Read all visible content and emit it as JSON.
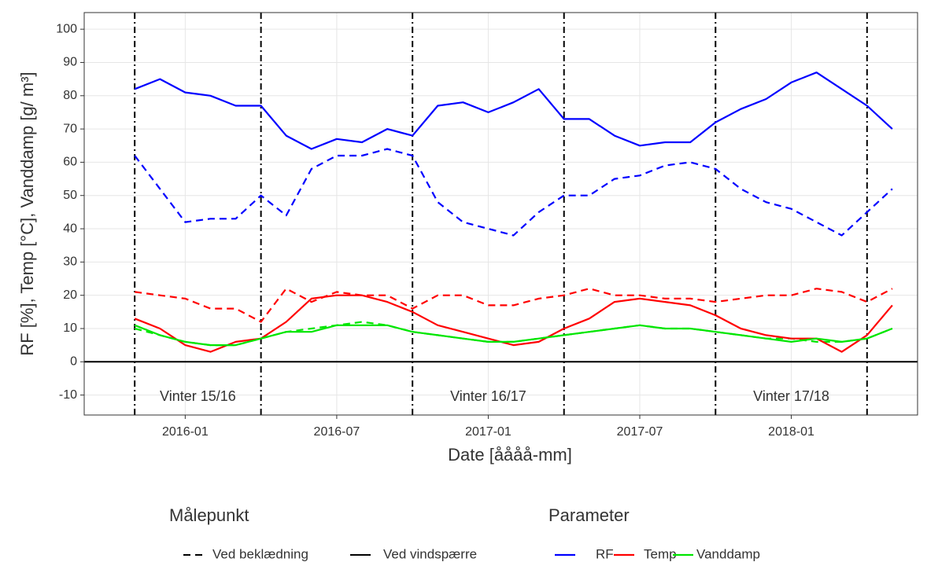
{
  "chart_data": {
    "type": "line",
    "xlabel": "Date [åååå-mm]",
    "ylabel": "RF [%], Temp [°C], Vanddamp [g/ m³]",
    "x": [
      "2015-11",
      "2015-12",
      "2016-01",
      "2016-02",
      "2016-03",
      "2016-04",
      "2016-05",
      "2016-06",
      "2016-07",
      "2016-08",
      "2016-09",
      "2016-10",
      "2016-11",
      "2016-12",
      "2017-01",
      "2017-02",
      "2017-03",
      "2017-04",
      "2017-05",
      "2017-06",
      "2017-07",
      "2017-08",
      "2017-09",
      "2017-10",
      "2017-11",
      "2017-12",
      "2018-01",
      "2018-02",
      "2018-03",
      "2018-04",
      "2018-05"
    ],
    "xlim": [
      "2015-09",
      "2018-06"
    ],
    "xticks": [
      "2016-01",
      "2016-07",
      "2017-01",
      "2017-07",
      "2018-01"
    ],
    "ylim": [
      -16,
      105
    ],
    "yticks": [
      -10,
      0,
      10,
      20,
      30,
      40,
      50,
      60,
      70,
      80,
      90,
      100
    ],
    "grid": true,
    "hline": 0,
    "vlines": [
      "2015-11",
      "2016-04",
      "2016-10",
      "2017-04",
      "2017-10",
      "2018-04"
    ],
    "annotations": [
      "Vinter 15/16",
      "Vinter 16/17",
      "Vinter 17/18"
    ],
    "legend_linetype_title": "Målepunkt",
    "legend_color_title": "Parameter",
    "parameters": [
      {
        "name": "RF",
        "color": "#0000ff"
      },
      {
        "name": "Temp",
        "color": "#ff0000"
      },
      {
        "name": "Vanddamp",
        "color": "#00e600"
      }
    ],
    "series": [
      {
        "name": "Ved beklædning",
        "linetype": "dashed",
        "values": [
          [
            62,
            52,
            42,
            43,
            43,
            50,
            44,
            58,
            62,
            62,
            64,
            62,
            48,
            42,
            40,
            38,
            45,
            50,
            50,
            55,
            56,
            59,
            60,
            58,
            52,
            48,
            46,
            42,
            38,
            45,
            52
          ],
          [
            21,
            20,
            19,
            16,
            16,
            12,
            22,
            18,
            21,
            20,
            20,
            16,
            20,
            20,
            17,
            17,
            19,
            20,
            22,
            20,
            20,
            19,
            19,
            18,
            19,
            20,
            20,
            22,
            21,
            18,
            22
          ],
          [
            10,
            8,
            6,
            5,
            5,
            7,
            9,
            10,
            11,
            12,
            11,
            9,
            8,
            7,
            6,
            6,
            7,
            8,
            9,
            10,
            11,
            10,
            10,
            9,
            8,
            7,
            7,
            6,
            6,
            7,
            10
          ]
        ]
      },
      {
        "name": "Ved vindspærre",
        "linetype": "solid",
        "values": [
          [
            82,
            85,
            81,
            80,
            77,
            77,
            68,
            64,
            67,
            66,
            70,
            68,
            77,
            78,
            75,
            78,
            82,
            73,
            73,
            68,
            65,
            66,
            66,
            72,
            76,
            79,
            84,
            87,
            82,
            77,
            70
          ],
          [
            13,
            10,
            5,
            3,
            6,
            7,
            12,
            19,
            20,
            20,
            18,
            15,
            11,
            9,
            7,
            5,
            6,
            10,
            13,
            18,
            19,
            18,
            17,
            14,
            10,
            8,
            7,
            7,
            3,
            8,
            17
          ],
          [
            11,
            8,
            6,
            5,
            5,
            7,
            9,
            9,
            11,
            11,
            11,
            9,
            8,
            7,
            6,
            6,
            7,
            8,
            9,
            10,
            11,
            10,
            10,
            9,
            8,
            7,
            6,
            7,
            6,
            7,
            10
          ]
        ]
      }
    ]
  }
}
